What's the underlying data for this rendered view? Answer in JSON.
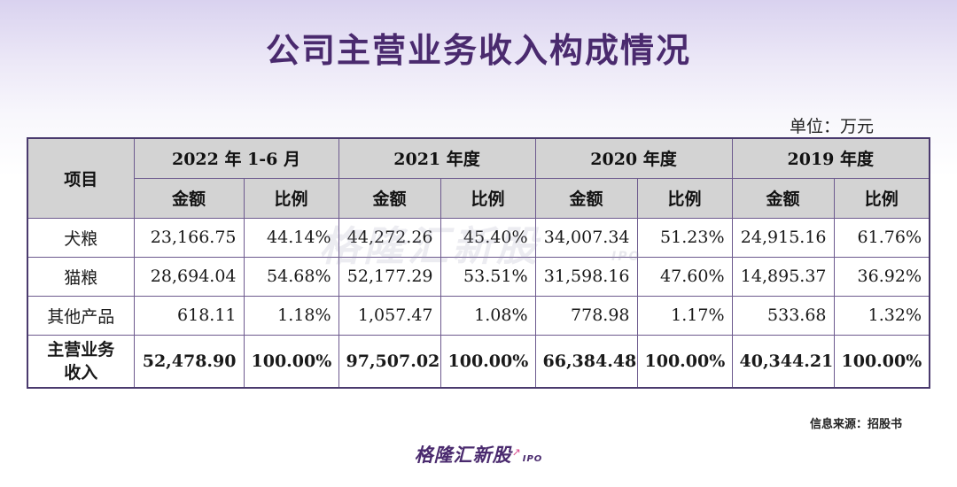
{
  "title": "公司主营业务收入构成情况",
  "unit": "单位：万元",
  "table": {
    "item_header": "项目",
    "years": [
      "2022 年 1-6 月",
      "2021 年度",
      "2020 年度",
      "2019 年度"
    ],
    "sub_headers": {
      "amount": "金额",
      "ratio": "比例"
    },
    "rows": [
      {
        "label": "犬粮",
        "cells": [
          "23,166.75",
          "44.14%",
          "44,272.26",
          "45.40%",
          "34,007.34",
          "51.23%",
          "24,915.16",
          "61.76%"
        ]
      },
      {
        "label": "猫粮",
        "cells": [
          "28,694.04",
          "54.68%",
          "52,177.29",
          "53.51%",
          "31,598.16",
          "47.60%",
          "14,895.37",
          "36.92%"
        ]
      },
      {
        "label": "其他产品",
        "cells": [
          "618.11",
          "1.18%",
          "1,057.47",
          "1.08%",
          "778.98",
          "1.17%",
          "533.68",
          "1.32%"
        ]
      }
    ],
    "total": {
      "label_line1": "主营业务",
      "label_line2": "收入",
      "cells": [
        "52,478.90",
        "100.00%",
        "97,507.02",
        "100.00%",
        "66,384.48",
        "100.00%",
        "40,344.21",
        "100.00%"
      ]
    }
  },
  "watermark": {
    "text": "格隆汇新股",
    "sub": "IPO"
  },
  "source": "信息来源：招股书",
  "brand": {
    "name": "格隆汇新股",
    "ipo": "IPO",
    "arrow": "↗"
  },
  "colors": {
    "title": "#4a2a6e",
    "header_bg": "#d3d3d3",
    "border": "#6d5a8e"
  }
}
